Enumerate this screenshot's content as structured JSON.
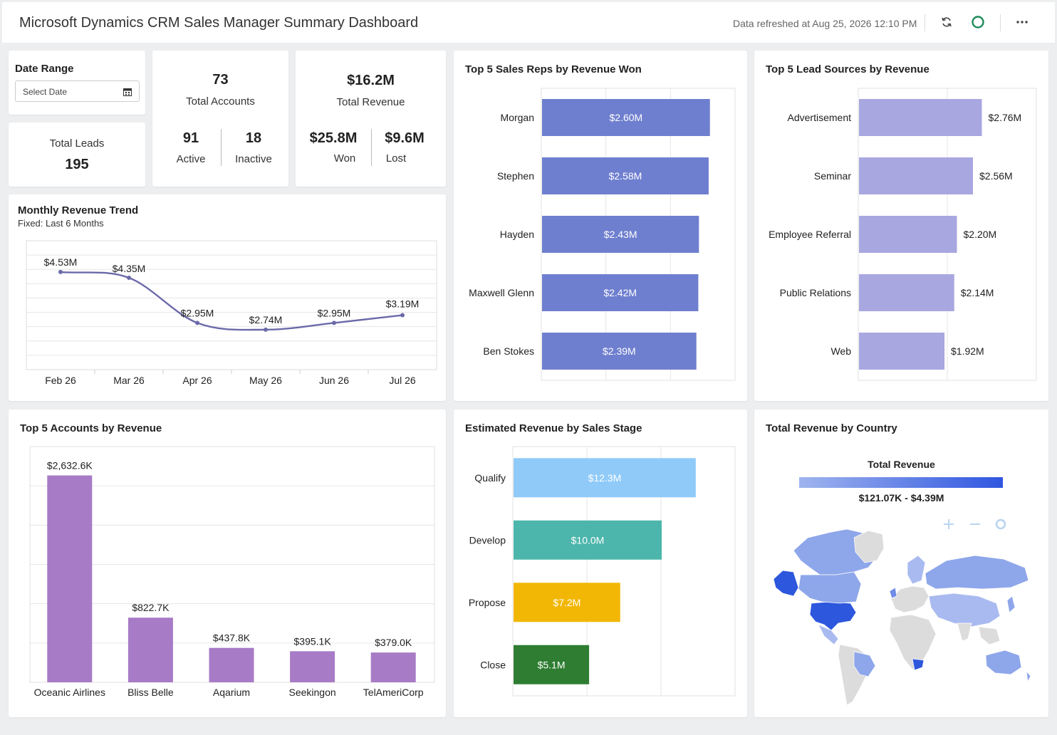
{
  "header": {
    "title": "Microsoft Dynamics CRM Sales Manager Summary Dashboard",
    "refreshed": "Data refreshed at Aug 25, 2026 12:10 PM",
    "icons": [
      "refresh-icon",
      "status-circle-icon",
      "more-icon"
    ]
  },
  "date_range": {
    "label": "Date Range",
    "placeholder": "Select Date"
  },
  "total_leads": {
    "label": "Total Leads",
    "value": "195"
  },
  "accounts": {
    "total": "73",
    "total_label": "Total Accounts",
    "active": "91",
    "active_label": "Active",
    "inactive": "18",
    "inactive_label": "Inactive"
  },
  "revenue": {
    "total": "$16.2M",
    "total_label": "Total Revenue",
    "won": "$25.8M",
    "won_label": "Won",
    "lost": "$9.6M",
    "lost_label": "Lost"
  },
  "colors": {
    "reps": "#6f7fcf",
    "sources": "#a9a7e0",
    "accounts": "#a77bc6",
    "qualify": "#90caf9",
    "develop": "#4db6ac",
    "propose": "#f2b705",
    "close": "#2e7d32",
    "trend": "#6b6aa9"
  },
  "chart_data": [
    {
      "id": "monthly_trend",
      "type": "line",
      "title": "Monthly Revenue Trend",
      "subtitle": "Fixed: Last 6 Months",
      "categories": [
        "Feb 26",
        "Mar 26",
        "Apr 26",
        "May 26",
        "Jun 26",
        "Jul 26"
      ],
      "values": [
        4.53,
        4.35,
        2.95,
        2.74,
        2.95,
        3.19
      ],
      "labels": [
        "$4.53M",
        "$4.35M",
        "$2.95M",
        "$2.74M",
        "$2.95M",
        "$3.19M"
      ],
      "ylim": [
        1.5,
        5.5
      ],
      "grid": true
    },
    {
      "id": "top_reps",
      "type": "bar",
      "orientation": "horizontal",
      "title": "Top 5 Sales Reps by Revenue Won",
      "categories": [
        "Morgan",
        "Stephen",
        "Hayden",
        "Maxwell Glenn",
        "Ben Stokes"
      ],
      "values": [
        2.6,
        2.58,
        2.43,
        2.42,
        2.39
      ],
      "labels": [
        "$2.60M",
        "$2.58M",
        "$2.43M",
        "$2.42M",
        "$2.39M"
      ],
      "xlim": [
        0,
        3.0
      ],
      "grid": true
    },
    {
      "id": "lead_sources",
      "type": "bar",
      "orientation": "horizontal",
      "title": "Top 5 Lead Sources by Revenue",
      "categories": [
        "Advertisement",
        "Seminar",
        "Employee Referral",
        "Public Relations",
        "Web"
      ],
      "values": [
        2.76,
        2.56,
        2.2,
        2.14,
        1.92
      ],
      "labels": [
        "$2.76M",
        "$2.56M",
        "$2.20M",
        "$2.14M",
        "$1.92M"
      ],
      "xlim": [
        0,
        4.0
      ],
      "grid": true
    },
    {
      "id": "top_accounts",
      "type": "bar",
      "title": "Top 5 Accounts by Revenue",
      "categories": [
        "Oceanic Airlines",
        "Bliss Belle",
        "Aqarium",
        "Seekingon",
        "TelAmeriCorp"
      ],
      "values": [
        2632.6,
        822.7,
        437.8,
        395.1,
        379.0
      ],
      "labels": [
        "$2,632.6K",
        "$822.7K",
        "$437.8K",
        "$395.1K",
        "$379.0K"
      ],
      "ylim": [
        0,
        3000
      ],
      "grid": true
    },
    {
      "id": "sales_stage",
      "type": "bar",
      "orientation": "horizontal",
      "title": "Estimated Revenue by Sales Stage",
      "categories": [
        "Qualify",
        "Develop",
        "Propose",
        "Close"
      ],
      "values": [
        12.3,
        10.0,
        7.2,
        5.1
      ],
      "labels": [
        "$12.3M",
        "$10.0M",
        "$7.2M",
        "$5.1M"
      ],
      "xlim": [
        0,
        15
      ],
      "grid": true
    },
    {
      "id": "revenue_by_country",
      "type": "map",
      "title": "Total Revenue by Country",
      "legend_title": "Total Revenue",
      "legend_range": "$121.07K - $4.39M",
      "zoom_icons": [
        "plus-icon",
        "minus-icon",
        "reset-icon"
      ]
    }
  ]
}
